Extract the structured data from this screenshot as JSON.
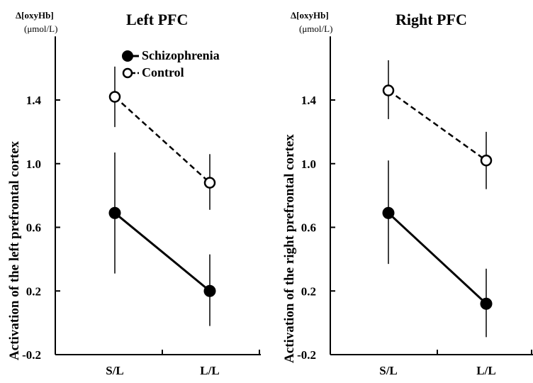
{
  "legend": [
    {
      "label": "Schizophrenia",
      "marker": "filled"
    },
    {
      "label": "Control",
      "marker": "open"
    }
  ],
  "chart_data": [
    {
      "type": "line",
      "title": "Left PFC",
      "unit_line1": "Δ[oxyHb]",
      "unit_line2": "(μmol/L)",
      "ylabel": "Activation of the left prefrontal cortex",
      "categories": [
        "S/L",
        "L/L"
      ],
      "yticks": [
        -0.2,
        0.2,
        0.6,
        1.0,
        1.4
      ],
      "ytick_labels": [
        "-0.2",
        "0.2",
        "0.6",
        "1.0",
        "1.4"
      ],
      "ylim": [
        -0.2,
        1.8
      ],
      "series": [
        {
          "name": "Schizophrenia",
          "values": [
            0.69,
            0.2
          ],
          "err_low": [
            0.31,
            -0.02
          ],
          "err_high": [
            1.07,
            0.43
          ],
          "style": "solid",
          "marker": "filled"
        },
        {
          "name": "Control",
          "values": [
            1.42,
            0.88
          ],
          "err_low": [
            1.23,
            0.71
          ],
          "err_high": [
            1.61,
            1.06
          ],
          "style": "dashed",
          "marker": "open"
        }
      ]
    },
    {
      "type": "line",
      "title": "Right PFC",
      "unit_line1": "Δ[oxyHb]",
      "unit_line2": "(μmol/L)",
      "ylabel": "Activation of the right prefrontal cortex",
      "categories": [
        "S/L",
        "L/L"
      ],
      "yticks": [
        -0.2,
        0.2,
        0.6,
        1.0,
        1.4
      ],
      "ytick_labels": [
        "-0.2",
        "0.2",
        "0.6",
        "1.0",
        "1.4"
      ],
      "ylim": [
        -0.2,
        1.8
      ],
      "series": [
        {
          "name": "Schizophrenia",
          "values": [
            0.69,
            0.12
          ],
          "err_low": [
            0.37,
            -0.09
          ],
          "err_high": [
            1.02,
            0.34
          ],
          "style": "solid",
          "marker": "filled"
        },
        {
          "name": "Control",
          "values": [
            1.46,
            1.02
          ],
          "err_low": [
            1.28,
            0.84
          ],
          "err_high": [
            1.65,
            1.2
          ],
          "style": "dashed",
          "marker": "open"
        }
      ]
    }
  ]
}
